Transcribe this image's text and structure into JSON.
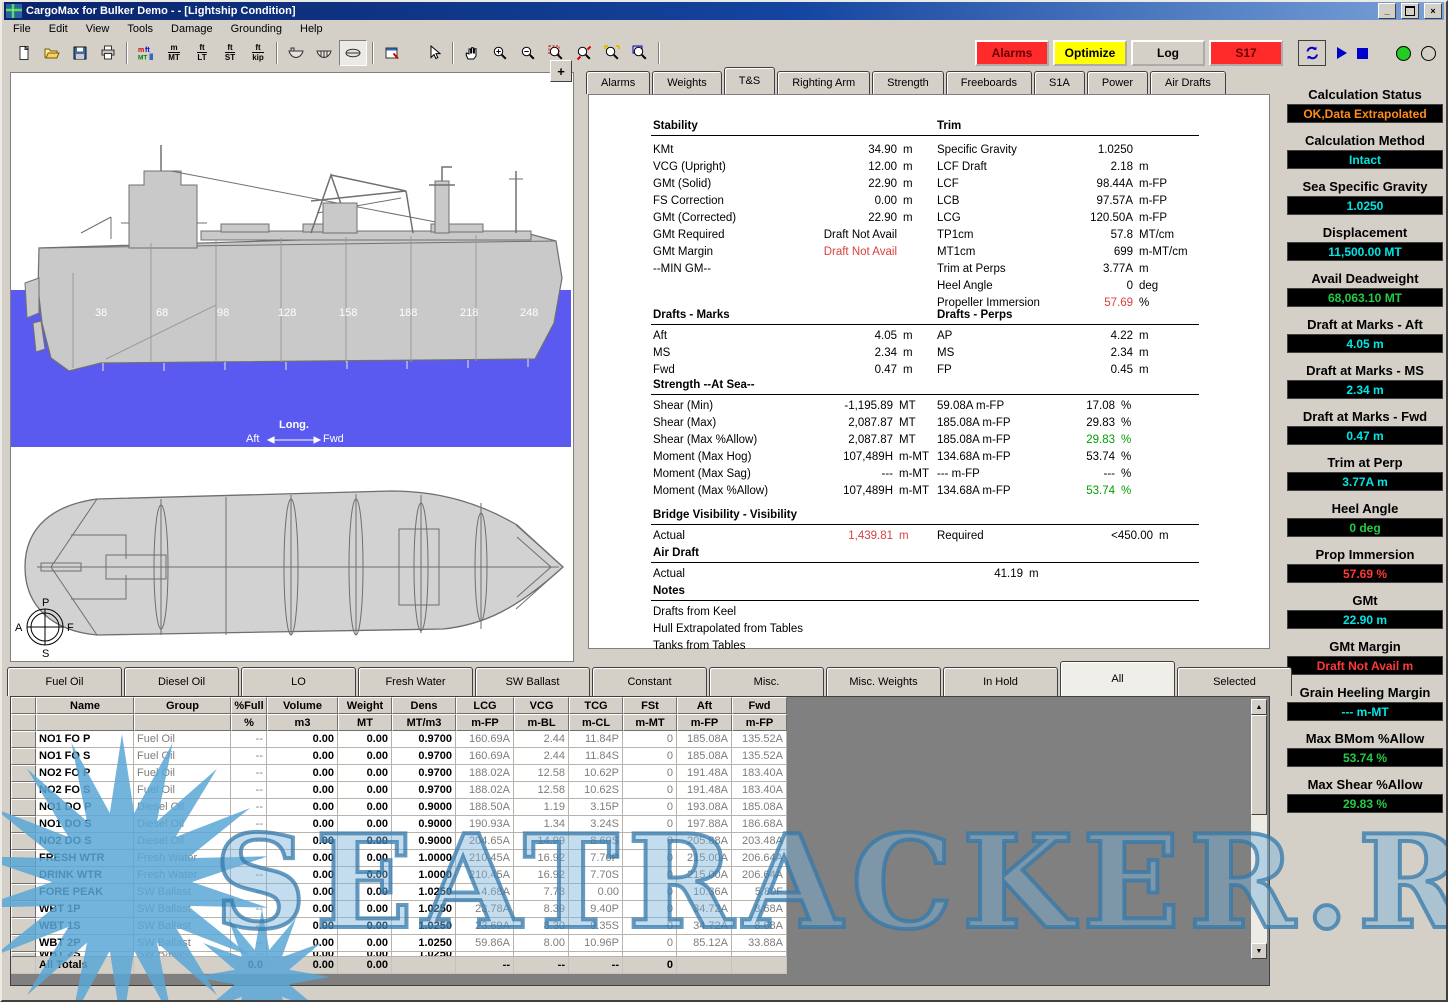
{
  "window": {
    "title": "CargoMax for Bulker Demo -  - [Lightship Condition]"
  },
  "menu": {
    "items": [
      "File",
      "Edit",
      "View",
      "Tools",
      "Damage",
      "Grounding",
      "Help"
    ]
  },
  "toolbar": {
    "file_icons": [
      "new-file-icon",
      "open-file-icon",
      "save-icon",
      "print-icon"
    ],
    "units_color_icon": "units-color-icon",
    "unit_buttons": [
      [
        "m",
        "MT"
      ],
      [
        "ft",
        "LT"
      ],
      [
        "ft",
        "ST"
      ],
      [
        "ft",
        "kip"
      ]
    ],
    "view_icons": [
      "profile-view-icon",
      "section-view-icon",
      "plan-view-icon"
    ],
    "report_icon": "report-icon",
    "pointer_icon": "pointer-icon",
    "zoom_icons": [
      "pan-icon",
      "zoom-in-icon",
      "zoom-out-icon",
      "zoom-area-icon",
      "zoom-dynamic-icon",
      "zoom-previous-icon",
      "zoom-window-icon"
    ],
    "status_buttons": [
      {
        "label": "Alarms",
        "bg": "#FF2A2A",
        "fg": "#6a0000"
      },
      {
        "label": "Optimize",
        "bg": "#FFFF00",
        "fg": "#000000"
      },
      {
        "label": "Log",
        "bg": "#D4D0C8",
        "fg": "#000000"
      },
      {
        "label": "S17",
        "bg": "#FF2A2A",
        "fg": "#6a0000"
      }
    ],
    "run_icons": [
      "sync-icon",
      "play-icon",
      "stop-icon",
      "led-green-icon",
      "led-off-icon"
    ]
  },
  "ship_view": {
    "frames": [
      "38",
      "68",
      "98",
      "128",
      "158",
      "188",
      "218",
      "248"
    ],
    "long_label": "Long.",
    "aft_label": "Aft",
    "fwd_label": "Fwd",
    "compass": {
      "top": "P",
      "bottom": "S",
      "left": "A",
      "right": "F"
    },
    "expand_button": "+",
    "water_color": "#5A5AF0",
    "hull_color": "#C9C9C9"
  },
  "top_tabs": {
    "active": "T&S",
    "items": [
      "Alarms",
      "Weights",
      "T&S",
      "Righting Arm",
      "Strength",
      "Freeboards",
      "S1A",
      "Power",
      "Air Drafts"
    ]
  },
  "ts": {
    "stability": {
      "title": "Stability",
      "rows": [
        {
          "label": "KMt",
          "value": "34.90",
          "unit": "m"
        },
        {
          "label": "VCG (Upright)",
          "value": "12.00",
          "unit": "m"
        },
        {
          "label": "GMt (Solid)",
          "value": "22.90",
          "unit": "m"
        },
        {
          "label": "FS Correction",
          "value": "0.00",
          "unit": "m"
        },
        {
          "label": "GMt (Corrected)",
          "value": "22.90",
          "unit": "m"
        },
        {
          "label": "GMt Required",
          "value": "Draft Not Avail",
          "unit": ""
        },
        {
          "label": "GMt Margin",
          "value": "Draft Not Avail",
          "unit": "",
          "color": "red"
        },
        {
          "label": "--MIN GM--",
          "value": "",
          "unit": ""
        }
      ]
    },
    "trim": {
      "title": "Trim",
      "rows": [
        {
          "label": "Specific Gravity",
          "value": "1.0250",
          "unit": ""
        },
        {
          "label": "LCF Draft",
          "value": "2.18",
          "unit": "m"
        },
        {
          "label": "LCF",
          "value": "98.44A",
          "unit": "m-FP"
        },
        {
          "label": "LCB",
          "value": "97.57A",
          "unit": "m-FP"
        },
        {
          "label": "LCG",
          "value": "120.50A",
          "unit": "m-FP"
        },
        {
          "label": "TP1cm",
          "value": "57.8",
          "unit": "MT/cm"
        },
        {
          "label": "MT1cm",
          "value": "699",
          "unit": "m-MT/cm"
        },
        {
          "label": "Trim at Perps",
          "value": "3.77A",
          "unit": "m"
        },
        {
          "label": "Heel Angle",
          "value": "0",
          "unit": "deg"
        },
        {
          "label": "Propeller Immersion",
          "value": "57.69",
          "unit": "%",
          "color": "red"
        }
      ]
    },
    "drafts_marks": {
      "title": "Drafts - Marks",
      "rows": [
        {
          "label": "Aft",
          "value": "4.05",
          "unit": "m"
        },
        {
          "label": "MS",
          "value": "2.34",
          "unit": "m"
        },
        {
          "label": "Fwd",
          "value": "0.47",
          "unit": "m"
        }
      ]
    },
    "drafts_perps": {
      "title": "Drafts - Perps",
      "rows": [
        {
          "label": "AP",
          "value": "4.22",
          "unit": "m"
        },
        {
          "label": "MS",
          "value": "2.34",
          "unit": "m"
        },
        {
          "label": "FP",
          "value": "0.45",
          "unit": "m"
        }
      ]
    },
    "strength": {
      "title": "Strength --At Sea--",
      "rows": [
        {
          "label": "Shear (Min)",
          "v1": "-1,195.89",
          "u1": "MT",
          "v2": "59.08A m-FP",
          "v3": "17.08",
          "u3": "%",
          "color": ""
        },
        {
          "label": "Shear (Max)",
          "v1": "2,087.87",
          "u1": "MT",
          "v2": "185.08A m-FP",
          "v3": "29.83",
          "u3": "%",
          "color": ""
        },
        {
          "label": "Shear (Max %Allow)",
          "v1": "2,087.87",
          "u1": "MT",
          "v2": "185.08A m-FP",
          "v3": "29.83",
          "u3": "%",
          "color": "green"
        },
        {
          "label": "Moment (Max Hog)",
          "v1": "107,489H",
          "u1": "m-MT",
          "v2": "134.68A m-FP",
          "v3": "53.74",
          "u3": "%",
          "color": ""
        },
        {
          "label": "Moment (Max Sag)",
          "v1": "---",
          "u1": "m-MT",
          "v2": "--- m-FP",
          "v3": "---",
          "u3": "%",
          "color": ""
        },
        {
          "label": "Moment (Max %Allow)",
          "v1": "107,489H",
          "u1": "m-MT",
          "v2": "134.68A m-FP",
          "v3": "53.74",
          "u3": "%",
          "color": "green"
        }
      ]
    },
    "bridge": {
      "title": "Bridge Visibility - Visibility",
      "actual_label": "Actual",
      "actual_value": "1,439.81",
      "actual_unit": "m",
      "required_label": "Required",
      "required_value": "<450.00",
      "required_unit": "m"
    },
    "air_draft": {
      "title": "Air Draft",
      "actual_label": "Actual",
      "value": "41.19",
      "unit": "m"
    },
    "notes": {
      "title": "Notes",
      "lines": [
        "Drafts from Keel",
        "Hull Extrapolated from Tables",
        "Tanks from Tables"
      ]
    }
  },
  "sidebar": {
    "panels": [
      {
        "label": "Calculation Status",
        "value": "OK,Data Extrapolated",
        "color": "orange"
      },
      {
        "label": "Calculation Method",
        "value": "Intact",
        "color": "cyan"
      },
      {
        "label": "Sea Specific Gravity",
        "value": "1.0250",
        "color": "cyan"
      },
      {
        "label": "Displacement",
        "value": "11,500.00 MT",
        "color": "cyan"
      },
      {
        "label": "Avail Deadweight",
        "value": "68,063.10 MT",
        "color": "green"
      },
      {
        "label": "Draft at Marks - Aft",
        "value": "4.05 m",
        "color": "cyan"
      },
      {
        "label": "Draft at Marks - MS",
        "value": "2.34 m",
        "color": "cyan"
      },
      {
        "label": "Draft at Marks - Fwd",
        "value": "0.47 m",
        "color": "cyan"
      },
      {
        "label": "Trim at Perp",
        "value": "3.77A m",
        "color": "cyan"
      },
      {
        "label": "Heel Angle",
        "value": "0 deg",
        "color": "green"
      },
      {
        "label": "Prop Immersion",
        "value": "57.69 %",
        "color": "red"
      },
      {
        "label": "GMt",
        "value": "22.90 m",
        "color": "cyan"
      },
      {
        "label": "GMt Margin",
        "value": "Draft Not Avail m",
        "color": "red"
      },
      {
        "label": "Grain Heeling Margin",
        "value": "--- m-MT",
        "color": "cyan"
      },
      {
        "label": "Max BMom %Allow",
        "value": "53.74 %",
        "color": "green"
      },
      {
        "label": "Max Shear %Allow",
        "value": "29.83 %",
        "color": "green"
      }
    ]
  },
  "bottom_tabs": {
    "active": "All",
    "items": [
      "Fuel Oil",
      "Diesel Oil",
      "LO",
      "Fresh Water",
      "SW Ballast",
      "Constant",
      "Misc.",
      "Misc. Weights",
      "In Hold",
      "All",
      "Selected"
    ]
  },
  "tank_table": {
    "headers": [
      "",
      "Name",
      "Group",
      "%Full",
      "Volume",
      "Weight",
      "Dens",
      "LCG",
      "VCG",
      "TCG",
      "FSt",
      "Aft",
      "Fwd"
    ],
    "units": [
      "",
      "",
      "",
      "%",
      "m3",
      "MT",
      "MT/m3",
      "m-FP",
      "m-BL",
      "m-CL",
      "m-MT",
      "m-FP",
      "m-FP"
    ],
    "rows": [
      [
        "",
        "NO1 FO P",
        "Fuel Oil",
        "--",
        "0.00",
        "0.00",
        "0.9700",
        "160.69A",
        "2.44",
        "11.84P",
        "0",
        "185.08A",
        "135.52A"
      ],
      [
        "",
        "NO1 FO S",
        "Fuel Oil",
        "--",
        "0.00",
        "0.00",
        "0.9700",
        "160.69A",
        "2.44",
        "11.84S",
        "0",
        "185.08A",
        "135.52A"
      ],
      [
        "",
        "NO2 FO P",
        "Fuel Oil",
        "--",
        "0.00",
        "0.00",
        "0.9700",
        "188.02A",
        "12.58",
        "10.62P",
        "0",
        "191.48A",
        "183.40A"
      ],
      [
        "",
        "NO2 FO S",
        "Fuel Oil",
        "--",
        "0.00",
        "0.00",
        "0.9700",
        "188.02A",
        "12.58",
        "10.62S",
        "0",
        "191.48A",
        "183.40A"
      ],
      [
        "",
        "NO1 DO P",
        "Diesel Oil",
        "--",
        "0.00",
        "0.00",
        "0.9000",
        "188.50A",
        "1.19",
        "3.15P",
        "0",
        "193.08A",
        "185.08A"
      ],
      [
        "",
        "NO1 DO S",
        "Diesel Oil",
        "--",
        "0.00",
        "0.00",
        "0.9000",
        "190.93A",
        "1.34",
        "3.24S",
        "0",
        "197.88A",
        "186.68A"
      ],
      [
        "",
        "NO2 DO S",
        "Diesel Oil",
        "--",
        "0.00",
        "0.00",
        "0.9000",
        "204.65A",
        "14.99",
        "8.60S",
        "0",
        "205.88A",
        "203.48A"
      ],
      [
        "",
        "FRESH WTR",
        "Fresh Water",
        "--",
        "0.00",
        "0.00",
        "1.0000",
        "210.45A",
        "16.92",
        "7.70P",
        "0",
        "215.00A",
        "206.64A"
      ],
      [
        "",
        "DRINK WTR",
        "Fresh Water",
        "--",
        "0.00",
        "0.00",
        "1.0000",
        "210.45A",
        "16.92",
        "7.70S",
        "0",
        "215.00A",
        "206.64A"
      ],
      [
        "",
        "FORE PEAK",
        "SW Ballast",
        "--",
        "0.00",
        "0.00",
        "1.0250",
        "4.68A",
        "7.73",
        "0.00",
        "0",
        "10.36A",
        "5.80F"
      ],
      [
        "",
        "WBT 1P",
        "SW Ballast",
        "--",
        "0.00",
        "0.00",
        "1.0250",
        "23.78A",
        "8.39",
        "9.40P",
        "0",
        "34.72A",
        "8.68A"
      ],
      [
        "",
        "WBT 1S",
        "SW Ballast",
        "--",
        "0.00",
        "0.00",
        "1.0250",
        "23.69A",
        "8.30",
        "9.35S",
        "0",
        "34.72A",
        "8.68A"
      ],
      [
        "",
        "WBT 2P",
        "SW Ballast",
        "--",
        "0.00",
        "0.00",
        "1.0250",
        "59.86A",
        "8.00",
        "10.96P",
        "0",
        "85.12A",
        "33.88A"
      ],
      [
        "",
        "WBT 2S",
        "SW Ballast",
        "--",
        "0.00",
        "0.00",
        "1.0250",
        "",
        "",
        "",
        "",
        "",
        ""
      ]
    ],
    "totals": [
      "",
      "All Totals",
      "",
      "0.0",
      "0.00",
      "0.00",
      "",
      "--",
      "--",
      "--",
      "0",
      "",
      ""
    ]
  },
  "watermark": {
    "text": "SEATRACKER.RU",
    "color": "#4A9AD0"
  }
}
